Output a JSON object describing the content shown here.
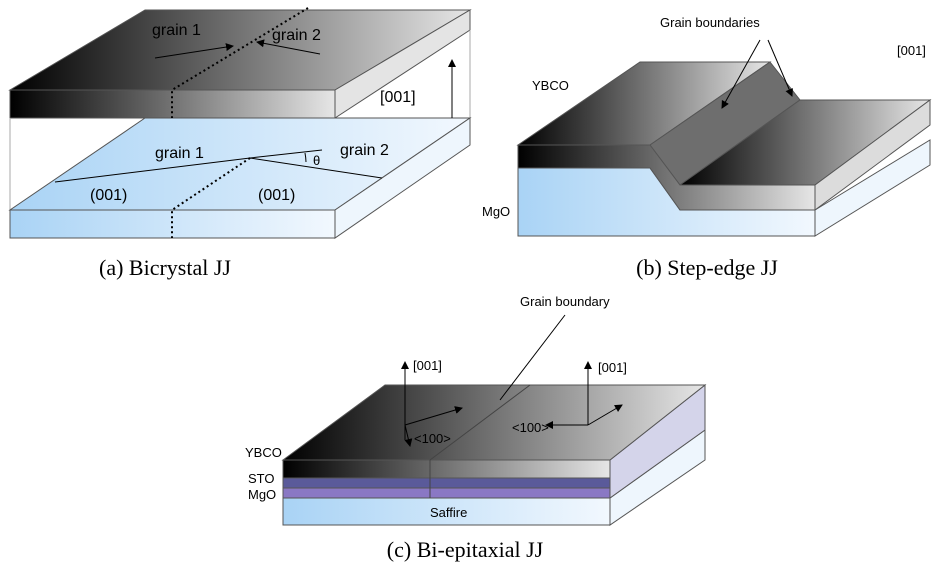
{
  "panels": [
    {
      "caption": "(a) Bicrystal JJ",
      "labels": [
        "grain 1",
        "grain 2",
        "[001]",
        "grain 1",
        "grain 2",
        "θ",
        "(001)",
        "(001)"
      ]
    },
    {
      "caption": "(b) Step-edge JJ",
      "labels": [
        "Grain boundaries",
        "[001]",
        "YBCO",
        "MgO"
      ]
    },
    {
      "caption": "(c) Bi-epitaxial JJ",
      "labels": [
        "Grain boundary",
        "[001]",
        "[001]",
        "<100>",
        "<100>",
        "YBCO",
        "STO",
        "MgO",
        "Saffire"
      ]
    }
  ]
}
